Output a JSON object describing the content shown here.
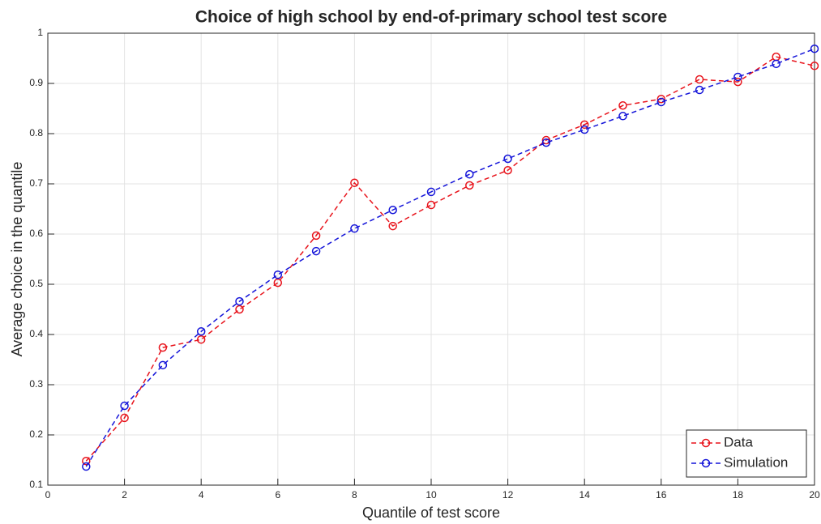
{
  "chart_data": {
    "type": "line",
    "title": "Choice of high school by end-of-primary school test score",
    "x_label": "Quantile of test score",
    "y_label": "Average choice in the quantile",
    "x": [
      1,
      2,
      3,
      4,
      5,
      6,
      7,
      8,
      9,
      10,
      11,
      12,
      13,
      14,
      15,
      16,
      17,
      18,
      19,
      20
    ],
    "series": [
      {
        "name": "Data",
        "color": "#e8141c",
        "values": [
          0.148,
          0.234,
          0.374,
          0.39,
          0.45,
          0.503,
          0.597,
          0.702,
          0.616,
          0.658,
          0.697,
          0.727,
          0.787,
          0.818,
          0.856,
          0.869,
          0.908,
          0.903,
          0.953,
          0.935
        ]
      },
      {
        "name": "Simulation",
        "color": "#1414d9",
        "values": [
          0.137,
          0.258,
          0.339,
          0.406,
          0.466,
          0.519,
          0.566,
          0.611,
          0.648,
          0.684,
          0.719,
          0.75,
          0.782,
          0.808,
          0.835,
          0.863,
          0.887,
          0.913,
          0.939,
          0.969
        ]
      }
    ],
    "xlim": [
      0,
      20
    ],
    "xticks": [
      0,
      2,
      4,
      6,
      8,
      10,
      12,
      14,
      16,
      18,
      20
    ],
    "ylim": [
      0.1,
      1
    ],
    "yticks": [
      0.1,
      0.2,
      0.3,
      0.4,
      0.5,
      0.6,
      0.7,
      0.8,
      0.9,
      1
    ],
    "grid": true,
    "legend": "lower-right"
  }
}
